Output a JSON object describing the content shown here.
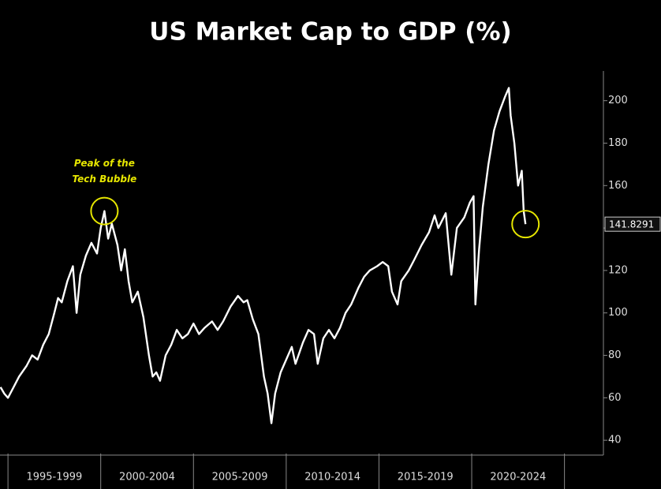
{
  "chart_data": {
    "type": "line",
    "title": "US Market Cap to GDP (%)",
    "x": [
      1994.6,
      1994.8,
      1995.0,
      1995.3,
      1995.6,
      1996.0,
      1996.3,
      1996.6,
      1996.9,
      1997.2,
      1997.5,
      1997.7,
      1997.9,
      1998.2,
      1998.5,
      1998.7,
      1998.9,
      1999.2,
      1999.5,
      1999.8,
      2000.0,
      2000.2,
      2000.4,
      2000.6,
      2000.9,
      2001.1,
      2001.3,
      2001.5,
      2001.7,
      2002.0,
      2002.3,
      2002.6,
      2002.8,
      2003.0,
      2003.2,
      2003.5,
      2003.8,
      2004.1,
      2004.4,
      2004.7,
      2005.0,
      2005.3,
      2005.6,
      2006.0,
      2006.3,
      2006.6,
      2007.0,
      2007.4,
      2007.7,
      2007.9,
      2008.2,
      2008.5,
      2008.8,
      2009.0,
      2009.2,
      2009.4,
      2009.7,
      2010.0,
      2010.3,
      2010.5,
      2010.9,
      2011.2,
      2011.5,
      2011.7,
      2012.0,
      2012.3,
      2012.6,
      2012.9,
      2013.2,
      2013.5,
      2013.9,
      2014.2,
      2014.5,
      2014.9,
      2015.2,
      2015.5,
      2015.7,
      2016.0,
      2016.2,
      2016.6,
      2016.9,
      2017.3,
      2017.7,
      2018.0,
      2018.2,
      2018.6,
      2018.9,
      2019.2,
      2019.6,
      2019.9,
      2020.1,
      2020.2,
      2020.4,
      2020.6,
      2020.9,
      2021.2,
      2021.5,
      2021.8,
      2022.0,
      2022.1,
      2022.3,
      2022.5,
      2022.7,
      2022.8,
      2022.9
    ],
    "series": [
      {
        "color": "#ffffff",
        "values": [
          65,
          62,
          60,
          65,
          70,
          75,
          80,
          78,
          85,
          90,
          100,
          107,
          105,
          115,
          122,
          100,
          118,
          127,
          133,
          128,
          140,
          148,
          135,
          142,
          132,
          120,
          130,
          115,
          105,
          110,
          98,
          80,
          70,
          72,
          68,
          80,
          85,
          92,
          88,
          90,
          95,
          90,
          93,
          96,
          92,
          96,
          103,
          108,
          105,
          106,
          97,
          90,
          70,
          62,
          48,
          62,
          72,
          78,
          84,
          76,
          86,
          92,
          90,
          76,
          88,
          92,
          88,
          93,
          100,
          104,
          112,
          117,
          120,
          122,
          124,
          122,
          110,
          104,
          115,
          120,
          125,
          132,
          138,
          146,
          140,
          147,
          118,
          140,
          145,
          152,
          155,
          104,
          130,
          150,
          170,
          186,
          195,
          202,
          206,
          193,
          180,
          160,
          167,
          148,
          141.8291
        ]
      }
    ],
    "xlim": [
      1994.57,
      2027.1
    ],
    "xticks": [
      {
        "value": 1997.5,
        "label": "1995-1999"
      },
      {
        "value": 2002.5,
        "label": "2000-2004"
      },
      {
        "value": 2007.5,
        "label": "2005-2009"
      },
      {
        "value": 2012.5,
        "label": "2010-2014"
      },
      {
        "value": 2017.5,
        "label": "2015-2019"
      },
      {
        "value": 2022.5,
        "label": "2020-2024"
      }
    ],
    "ylim": [
      33,
      214
    ],
    "yticks": [
      40,
      60,
      80,
      100,
      120,
      140,
      160,
      180,
      200
    ],
    "annotations": [
      {
        "text": [
          "Peak of the",
          "Tech Bubble"
        ],
        "x": 2000.2,
        "y": 148,
        "color": "#e6e600"
      },
      {
        "x": 2022.9,
        "y": 141.8291,
        "color": "#e6e600"
      }
    ]
  }
}
